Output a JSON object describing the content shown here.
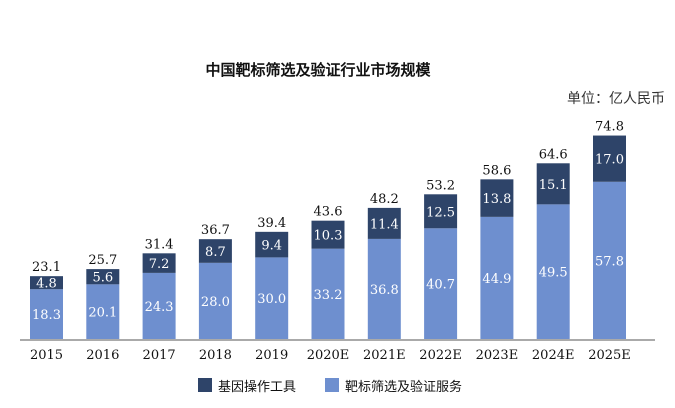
{
  "chart_data": {
    "type": "bar",
    "stacked": true,
    "title": "中国靶标筛选及验证行业市场规模",
    "unit_label": "单位：亿人民币",
    "categories": [
      "2015",
      "2016",
      "2017",
      "2018",
      "2019",
      "2020E",
      "2021E",
      "2022E",
      "2023E",
      "2024E",
      "2025E"
    ],
    "series": [
      {
        "name": "靶标筛选及验证服务",
        "color": "#6e8fcf",
        "values": [
          18.3,
          20.1,
          24.3,
          28.0,
          30.0,
          33.2,
          36.8,
          40.7,
          44.9,
          49.5,
          57.8
        ]
      },
      {
        "name": "基因操作工具",
        "color": "#2e4469",
        "values": [
          4.8,
          5.6,
          7.2,
          8.7,
          9.4,
          10.3,
          11.4,
          12.5,
          13.8,
          15.1,
          17.0
        ]
      }
    ],
    "totals": [
      "23.1",
      "25.7",
      "31.4",
      "36.7",
      "39.4",
      "43.6",
      "48.2",
      "53.2",
      "58.6",
      "64.6",
      "74.8"
    ],
    "legend": [
      {
        "name": "基因操作工具",
        "color": "#2e4469"
      },
      {
        "name": "靶标筛选及验证服务",
        "color": "#6e8fcf"
      }
    ],
    "legend_position": "bottom",
    "ylim": [
      0,
      75
    ],
    "grid": false
  }
}
